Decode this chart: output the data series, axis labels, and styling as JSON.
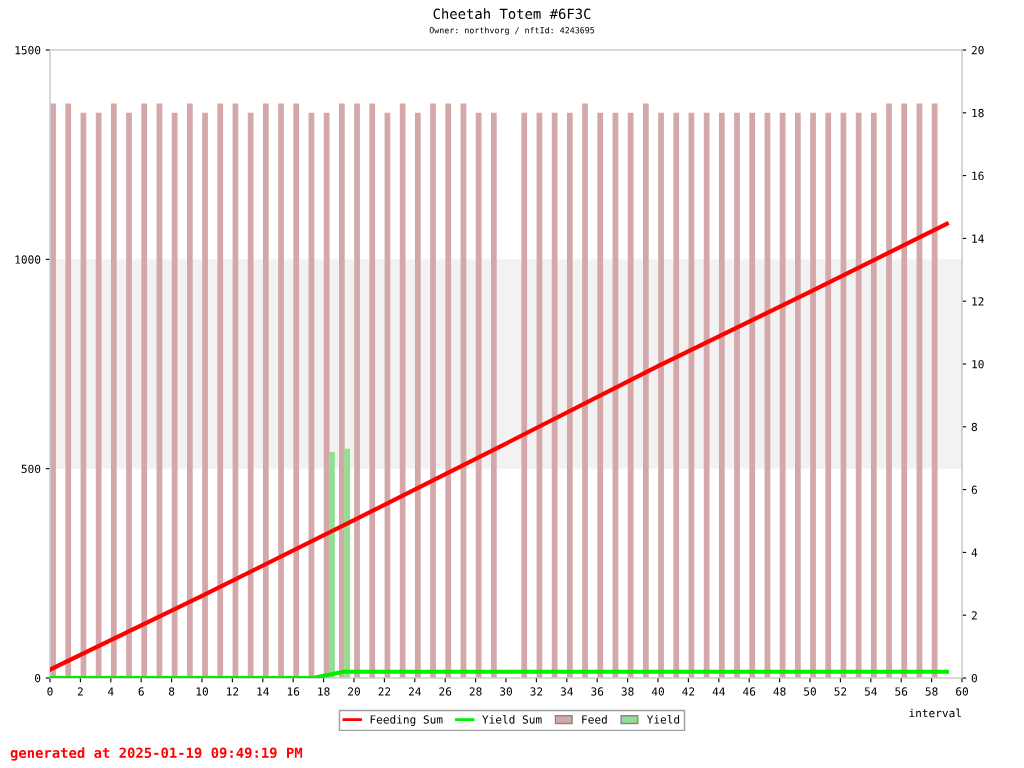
{
  "chart_data": {
    "type": "bar",
    "title": "Cheetah Totem #6F3C",
    "subtitle": "Owner: northvorg / nftId: 4243695",
    "xlabel": "interval",
    "xlim": [
      0,
      60
    ],
    "xticks": [
      0,
      2,
      4,
      6,
      8,
      10,
      12,
      14,
      16,
      18,
      20,
      22,
      24,
      26,
      28,
      30,
      32,
      34,
      36,
      38,
      40,
      42,
      44,
      46,
      48,
      50,
      52,
      54,
      56,
      58,
      60
    ],
    "ylim": [
      0,
      1500
    ],
    "yticks": [
      0,
      500,
      1000,
      1500
    ],
    "y2lim": [
      0,
      20
    ],
    "y2ticks": [
      0,
      2,
      4,
      6,
      8,
      10,
      12,
      14,
      16,
      18,
      20
    ],
    "bands": [
      {
        "axis": "y",
        "from": 500,
        "to": 1000,
        "color": "#f2f2f2"
      }
    ],
    "grid": false,
    "legend": "bottom",
    "series": [
      {
        "name": "Feed",
        "color": "#d4a8a8",
        "axis": "y2",
        "x": [
          0,
          1,
          2,
          3,
          4,
          5,
          6,
          7,
          8,
          9,
          10,
          11,
          12,
          13,
          14,
          15,
          16,
          17,
          18,
          19,
          20,
          21,
          22,
          23,
          24,
          25,
          26,
          27,
          28,
          29,
          30,
          31,
          32,
          33,
          34,
          35,
          36,
          37,
          38,
          39,
          40,
          41,
          42,
          43,
          44,
          45,
          46,
          47,
          48,
          49,
          50,
          51,
          52,
          53,
          54,
          55,
          56,
          57,
          58
        ],
        "values": [
          18.3,
          18.3,
          18,
          18,
          18.3,
          18,
          18.3,
          18.3,
          18,
          18.3,
          18,
          18.3,
          18.3,
          18,
          18.3,
          18.3,
          18.3,
          18,
          18,
          18.3,
          18.3,
          18.3,
          18,
          18.3,
          18,
          18.3,
          18.3,
          18.3,
          18,
          18,
          null,
          18,
          18,
          18,
          18,
          18.3,
          18,
          18,
          18,
          18.3,
          18,
          18,
          18,
          18,
          18,
          18,
          18,
          18,
          18,
          18,
          18,
          18,
          18,
          18,
          18,
          18.3,
          18.3,
          18.3,
          18.3
        ]
      },
      {
        "name": "Yield",
        "color": "#90e090",
        "axis": "y2",
        "x": [
          18,
          19
        ],
        "values": [
          7.2,
          7.3
        ]
      },
      {
        "type": "line",
        "name": "Feeding Sum",
        "color": "#ff0000",
        "axis": "y",
        "x": [
          0,
          10,
          20,
          30,
          40,
          50,
          59
        ],
        "values": [
          20,
          196,
          377,
          560,
          745,
          922,
          1085
        ]
      },
      {
        "type": "line",
        "name": "Yield Sum",
        "color": "#00ee00",
        "axis": "y",
        "x": [
          0,
          17.3,
          19.3,
          59
        ],
        "values": [
          0,
          0,
          15,
          15
        ]
      }
    ],
    "annotations": [
      "generated at 2025-01-19 09:49:19 PM"
    ]
  }
}
